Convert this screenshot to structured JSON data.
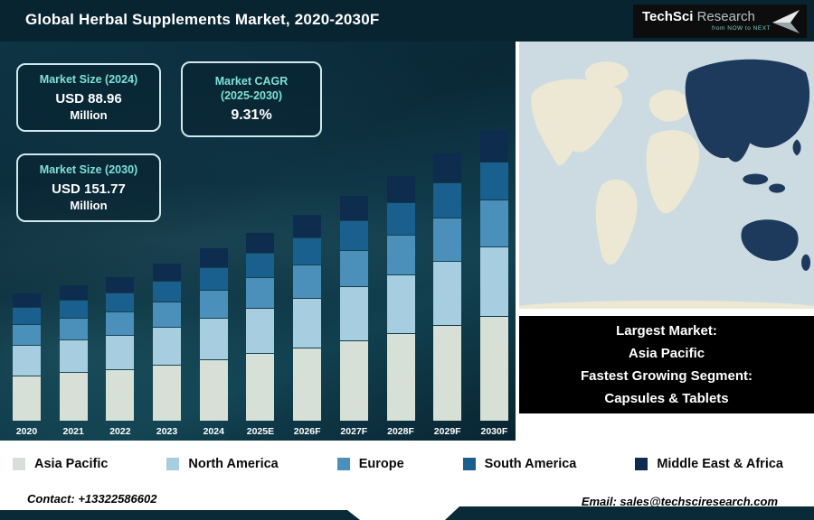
{
  "header": {
    "title": "Global Herbal Supplements Market, 2020-2030F"
  },
  "logo": {
    "name_bold": "TechSci",
    "name_light": "Research",
    "tagline": "from NOW to NEXT"
  },
  "cards": {
    "size2024": {
      "label": "Market Size (2024)",
      "value": "USD 88.96",
      "unit": "Million"
    },
    "cagr": {
      "label_line1": "Market CAGR",
      "label_line2": "(2025-2030)",
      "value": "9.31%"
    },
    "size2030": {
      "label": "Market Size (2030)",
      "value": "USD 151.77",
      "unit": "Million"
    }
  },
  "chart_data": {
    "type": "bar",
    "stacked": true,
    "title": "Global Herbal Supplements Market, 2020-2030F",
    "unit": "USD Million",
    "categories": [
      "2020",
      "2021",
      "2022",
      "2023",
      "2024",
      "2025E",
      "2026F",
      "2027F",
      "2028F",
      "2029F",
      "2030F"
    ],
    "series": [
      {
        "name": "Asia Pacific",
        "color": "#d7e0d6",
        "values": [
          23.4,
          25.0,
          26.7,
          29.2,
          32.0,
          35.0,
          38.3,
          41.8,
          45.7,
          50.0,
          54.6
        ]
      },
      {
        "name": "North America",
        "color": "#a6cde0",
        "values": [
          15.6,
          16.7,
          17.8,
          19.5,
          21.4,
          23.3,
          25.5,
          27.9,
          30.5,
          33.3,
          36.4
        ]
      },
      {
        "name": "Europe",
        "color": "#4b90ba",
        "values": [
          10.4,
          11.1,
          11.9,
          13.0,
          14.2,
          15.6,
          17.0,
          18.6,
          20.3,
          22.2,
          24.3
        ]
      },
      {
        "name": "South America",
        "color": "#1a608e",
        "values": [
          8.5,
          9.0,
          9.7,
          10.6,
          11.6,
          12.6,
          13.8,
          15.1,
          16.5,
          18.0,
          19.7
        ]
      },
      {
        "name": "Middle East & Africa",
        "color": "#0d2c4e",
        "values": [
          7.2,
          7.6,
          8.2,
          8.9,
          9.8,
          10.7,
          11.7,
          12.8,
          14.0,
          15.3,
          16.7
        ]
      }
    ],
    "totals": [
      65.1,
      69.4,
      74.3,
      81.2,
      88.96,
      97.2,
      106.3,
      116.2,
      127.0,
      138.8,
      151.77
    ],
    "ylim": [
      0,
      160
    ],
    "legend_position": "bottom",
    "grid": false
  },
  "map": {
    "highlight_region": "Asia Pacific",
    "ocean_color": "#ccdbe2",
    "land_color": "#ece8d3",
    "highlight_color": "#1d3a5c"
  },
  "largest_market_box": {
    "line1": "Largest Market:",
    "line2": "Asia Pacific",
    "line3": "Fastest Growing Segment:",
    "line4": "Capsules & Tablets"
  },
  "footer": {
    "contact": "Contact: +13322586602",
    "email": "Email: sales@techsciresearch.com"
  },
  "colors": {
    "header_bg": "#082430",
    "accent_teal": "#7fe0da",
    "dark_navy": "#0a2a38"
  }
}
